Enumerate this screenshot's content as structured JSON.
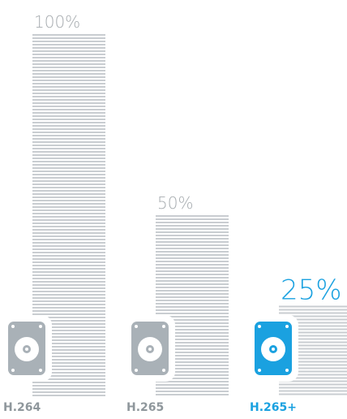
{
  "chart_data": {
    "type": "bar",
    "categories": [
      "H.264",
      "H.265",
      "H.265+"
    ],
    "values": [
      100,
      50,
      25
    ],
    "value_labels": [
      "100%",
      "50%",
      "25%"
    ],
    "ylim": [
      0,
      100
    ],
    "grid": false,
    "highlight_index": 2,
    "colors": {
      "bar_stripe": "#c9cdd1",
      "drive_gray": "#a9b1b7",
      "drive_blue": "#1aa1e0",
      "label_gray": "#a6abaf",
      "cat_gray": "#8f979c",
      "highlight": "#1aa1e0"
    },
    "icons": [
      "hard-drive-icon",
      "hard-drive-icon",
      "hard-drive-icon"
    ]
  }
}
